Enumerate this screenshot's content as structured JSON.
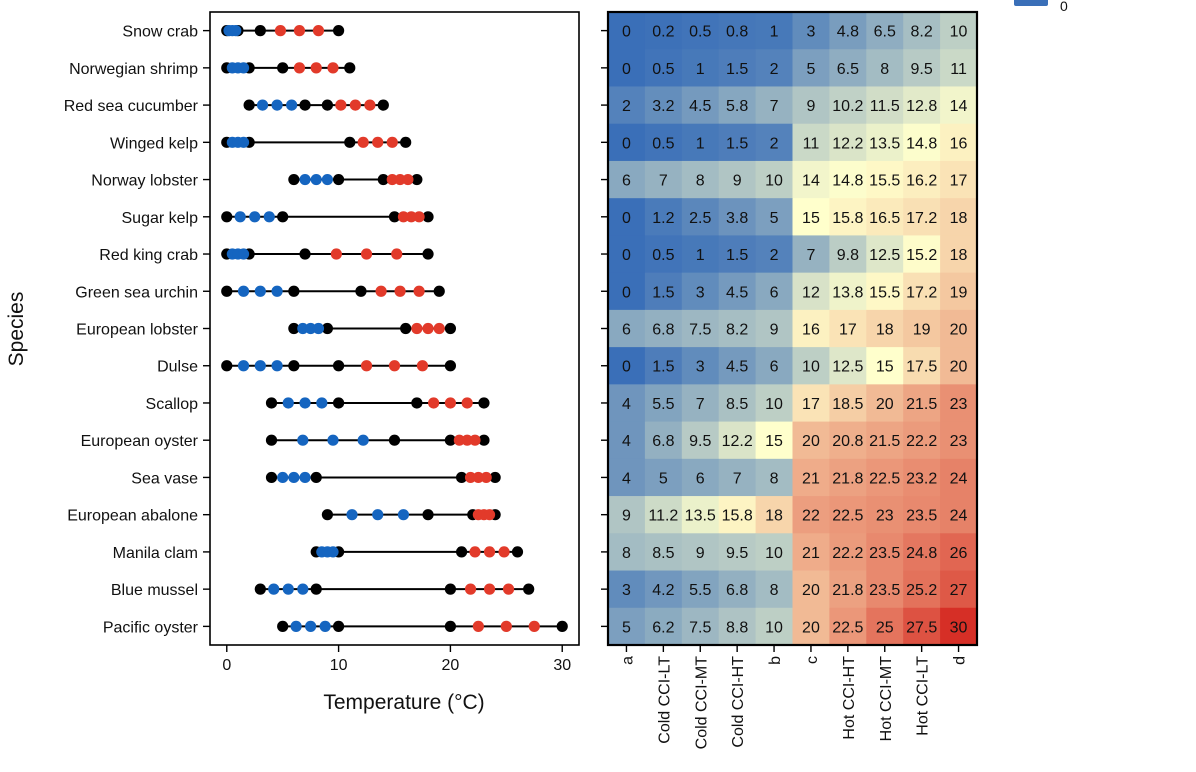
{
  "chart_data": [
    {
      "type": "scatter",
      "xlabel": "Temperature (°C)",
      "ylabel": "Species",
      "xlim": [
        -1.5,
        31.5
      ],
      "x_ticks": [
        0,
        10,
        20,
        30
      ],
      "grid": false,
      "series_colors": {
        "cold": "#1565c0",
        "hot": "#e23a2a",
        "limit": "#000000",
        "range": "#000000"
      },
      "species": [
        "Snow crab",
        "Norwegian shrimp",
        "Red sea cucumber",
        "Winged kelp",
        "Norway lobster",
        "Sugar kelp",
        "Red king crab",
        "Green sea urchin",
        "European lobster",
        "Dulse",
        "Scallop",
        "European oyster",
        "Sea vase",
        "European abalone",
        "Manila clam",
        "Blue mussel",
        "Pacific oyster"
      ]
    },
    {
      "type": "heatmap",
      "columns": [
        "a",
        "Cold CCI-LT",
        "Cold CCI-MT",
        "Cold CCI-HT",
        "b",
        "c",
        "Hot CCI-HT",
        "Hot CCI-MT",
        "Hot CCI-LT",
        "d"
      ],
      "rows": [
        {
          "species": "Snow crab",
          "values": [
            0,
            0.2,
            0.5,
            0.8,
            1,
            3,
            4.8,
            6.5,
            8.2,
            10
          ]
        },
        {
          "species": "Norwegian shrimp",
          "values": [
            0,
            0.5,
            1,
            1.5,
            2,
            5,
            6.5,
            8,
            9.5,
            11
          ]
        },
        {
          "species": "Red sea cucumber",
          "values": [
            2,
            3.2,
            4.5,
            5.8,
            7,
            9,
            10.2,
            11.5,
            12.8,
            14
          ]
        },
        {
          "species": "Winged kelp",
          "values": [
            0,
            0.5,
            1,
            1.5,
            2,
            11,
            12.2,
            13.5,
            14.8,
            16
          ]
        },
        {
          "species": "Norway lobster",
          "values": [
            6,
            7,
            8,
            9,
            10,
            14,
            14.8,
            15.5,
            16.2,
            17
          ]
        },
        {
          "species": "Sugar kelp",
          "values": [
            0,
            1.2,
            2.5,
            3.8,
            5,
            15,
            15.8,
            16.5,
            17.2,
            18
          ]
        },
        {
          "species": "Red king crab",
          "values": [
            0,
            0.5,
            1,
            1.5,
            2,
            7,
            9.8,
            12.5,
            15.2,
            18
          ]
        },
        {
          "species": "Green sea urchin",
          "values": [
            0,
            1.5,
            3,
            4.5,
            6,
            12,
            13.8,
            15.5,
            17.2,
            19
          ]
        },
        {
          "species": "European lobster",
          "values": [
            6,
            6.8,
            7.5,
            8.2,
            9,
            16,
            17,
            18,
            19,
            20
          ]
        },
        {
          "species": "Dulse",
          "values": [
            0,
            1.5,
            3,
            4.5,
            6,
            10,
            12.5,
            15,
            17.5,
            20
          ]
        },
        {
          "species": "Scallop",
          "values": [
            4,
            5.5,
            7,
            8.5,
            10,
            17,
            18.5,
            20,
            21.5,
            23
          ]
        },
        {
          "species": "European oyster",
          "values": [
            4,
            6.8,
            9.5,
            12.2,
            15,
            20,
            20.8,
            21.5,
            22.2,
            23
          ]
        },
        {
          "species": "Sea vase",
          "values": [
            4,
            5,
            6,
            7,
            8,
            21,
            21.8,
            22.5,
            23.2,
            24
          ]
        },
        {
          "species": "European abalone",
          "values": [
            9,
            11.2,
            13.5,
            15.8,
            18,
            22,
            22.5,
            23,
            23.5,
            24
          ]
        },
        {
          "species": "Manila clam",
          "values": [
            8,
            8.5,
            9,
            9.5,
            10,
            21,
            22.2,
            23.5,
            24.8,
            26
          ]
        },
        {
          "species": "Blue mussel",
          "values": [
            3,
            4.2,
            5.5,
            6.8,
            8,
            20,
            21.8,
            23.5,
            25.2,
            27
          ]
        },
        {
          "species": "Pacific oyster",
          "values": [
            5,
            6.2,
            7.5,
            8.8,
            10,
            20,
            22.5,
            25,
            27.5,
            30
          ]
        }
      ],
      "color_scale": {
        "min": 0,
        "max": 30,
        "low": "#3a6fb8",
        "mid": "#ffffcc",
        "high": "#d62f26"
      },
      "legend": {
        "label": "0",
        "swatch_color": "#3a6fb8"
      }
    }
  ]
}
